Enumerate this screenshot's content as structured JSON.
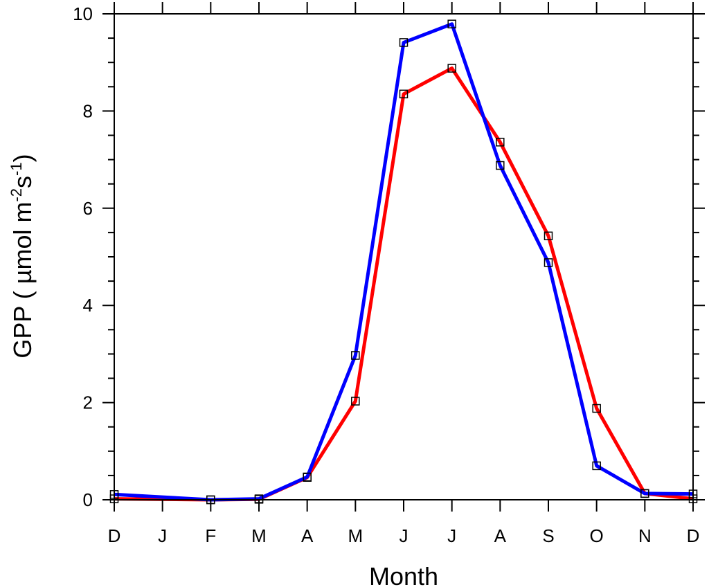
{
  "chart_data": {
    "type": "line",
    "title": "",
    "xlabel": "Month",
    "ylabel": "GPP ( µmol m-2s-1)",
    "ylabel_parts": {
      "prefix": "GPP ( µmol m",
      "sup1": "-2",
      "mid": "s",
      "sup2": "-1",
      "suffix": ")"
    },
    "categories": [
      "D",
      "J",
      "F",
      "M",
      "A",
      "M",
      "J",
      "J",
      "A",
      "S",
      "O",
      "N",
      "D"
    ],
    "ylim": [
      0,
      10
    ],
    "yticks": [
      "0",
      "2",
      "4",
      "6",
      "8",
      "10"
    ],
    "grid": false,
    "legend": "none",
    "series": [
      {
        "color": "#ff0000",
        "values": [
          0.02,
          null,
          0.0,
          0.01,
          0.46,
          2.03,
          8.35,
          8.88,
          7.36,
          5.43,
          1.88,
          0.13,
          0.02
        ]
      },
      {
        "color": "#0000ff",
        "values": [
          0.11,
          null,
          0.0,
          0.02,
          0.47,
          2.97,
          9.41,
          9.79,
          6.88,
          4.88,
          0.7,
          0.13,
          0.12
        ]
      }
    ],
    "marker": "square"
  }
}
